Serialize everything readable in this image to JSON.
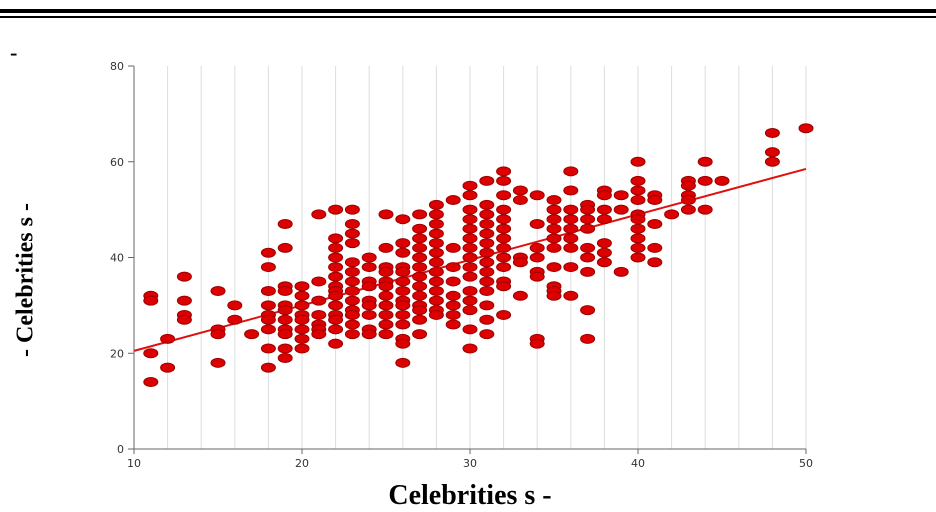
{
  "header": {
    "corner_mark": "-"
  },
  "chart_data": {
    "type": "scatter",
    "title": "",
    "xlabel": "Celebrities s -",
    "ylabel": "- Celebrities s -",
    "xlim": [
      10,
      50
    ],
    "ylim": [
      0,
      80
    ],
    "x_ticks": [
      10,
      20,
      30,
      40,
      50
    ],
    "y_ticks": [
      0,
      20,
      40,
      60,
      80
    ],
    "grid": "vertical",
    "trendline": {
      "x": [
        10,
        50
      ],
      "y": [
        20.5,
        58.5
      ]
    },
    "colors": {
      "points": "#dd0000",
      "point_stroke": "#990000",
      "trendline": "#e01010",
      "grid": "#dddddd",
      "axis": "#666666"
    },
    "points": [
      [
        11,
        32
      ],
      [
        11,
        31
      ],
      [
        11,
        20
      ],
      [
        11,
        14
      ],
      [
        12,
        23
      ],
      [
        12,
        17
      ],
      [
        13,
        36
      ],
      [
        13,
        31
      ],
      [
        13,
        28
      ],
      [
        13,
        27
      ],
      [
        15,
        33
      ],
      [
        15,
        25
      ],
      [
        15,
        24
      ],
      [
        15,
        18
      ],
      [
        16,
        30
      ],
      [
        16,
        27
      ],
      [
        17,
        24
      ],
      [
        18,
        41
      ],
      [
        18,
        38
      ],
      [
        18,
        33
      ],
      [
        18,
        30
      ],
      [
        18,
        28
      ],
      [
        18,
        27
      ],
      [
        18,
        25
      ],
      [
        18,
        21
      ],
      [
        18,
        17
      ],
      [
        19,
        47
      ],
      [
        19,
        42
      ],
      [
        19,
        34
      ],
      [
        19,
        33
      ],
      [
        19,
        30
      ],
      [
        19,
        29
      ],
      [
        19,
        27
      ],
      [
        19,
        25
      ],
      [
        19,
        24
      ],
      [
        19,
        21
      ],
      [
        19,
        19
      ],
      [
        20,
        34
      ],
      [
        20,
        32
      ],
      [
        20,
        30
      ],
      [
        20,
        28
      ],
      [
        20,
        27
      ],
      [
        20,
        25
      ],
      [
        20,
        23
      ],
      [
        20,
        21
      ],
      [
        21,
        49
      ],
      [
        21,
        35
      ],
      [
        21,
        31
      ],
      [
        21,
        28
      ],
      [
        21,
        26
      ],
      [
        21,
        25
      ],
      [
        21,
        24
      ],
      [
        22,
        50
      ],
      [
        22,
        44
      ],
      [
        22,
        42
      ],
      [
        22,
        40
      ],
      [
        22,
        38
      ],
      [
        22,
        36
      ],
      [
        22,
        34
      ],
      [
        22,
        33
      ],
      [
        22,
        32
      ],
      [
        22,
        30
      ],
      [
        22,
        28
      ],
      [
        22,
        27
      ],
      [
        22,
        25
      ],
      [
        22,
        22
      ],
      [
        23,
        50
      ],
      [
        23,
        47
      ],
      [
        23,
        45
      ],
      [
        23,
        43
      ],
      [
        23,
        39
      ],
      [
        23,
        37
      ],
      [
        23,
        35
      ],
      [
        23,
        33
      ],
      [
        23,
        31
      ],
      [
        23,
        29
      ],
      [
        23,
        28
      ],
      [
        23,
        26
      ],
      [
        23,
        24
      ],
      [
        24,
        40
      ],
      [
        24,
        38
      ],
      [
        24,
        35
      ],
      [
        24,
        34
      ],
      [
        24,
        31
      ],
      [
        24,
        30
      ],
      [
        24,
        28
      ],
      [
        24,
        25
      ],
      [
        24,
        24
      ],
      [
        25,
        49
      ],
      [
        25,
        42
      ],
      [
        25,
        38
      ],
      [
        25,
        37
      ],
      [
        25,
        35
      ],
      [
        25,
        34
      ],
      [
        25,
        32
      ],
      [
        25,
        30
      ],
      [
        25,
        28
      ],
      [
        25,
        26
      ],
      [
        25,
        24
      ],
      [
        26,
        48
      ],
      [
        26,
        43
      ],
      [
        26,
        41
      ],
      [
        26,
        38
      ],
      [
        26,
        37
      ],
      [
        26,
        35
      ],
      [
        26,
        33
      ],
      [
        26,
        31
      ],
      [
        26,
        30
      ],
      [
        26,
        28
      ],
      [
        26,
        26
      ],
      [
        26,
        23
      ],
      [
        26,
        22
      ],
      [
        26,
        18
      ],
      [
        27,
        49
      ],
      [
        27,
        46
      ],
      [
        27,
        44
      ],
      [
        27,
        42
      ],
      [
        27,
        40
      ],
      [
        27,
        38
      ],
      [
        27,
        36
      ],
      [
        27,
        34
      ],
      [
        27,
        32
      ],
      [
        27,
        30
      ],
      [
        27,
        29
      ],
      [
        27,
        27
      ],
      [
        27,
        24
      ],
      [
        28,
        51
      ],
      [
        28,
        49
      ],
      [
        28,
        47
      ],
      [
        28,
        45
      ],
      [
        28,
        43
      ],
      [
        28,
        41
      ],
      [
        28,
        39
      ],
      [
        28,
        37
      ],
      [
        28,
        35
      ],
      [
        28,
        33
      ],
      [
        28,
        31
      ],
      [
        28,
        29
      ],
      [
        28,
        28
      ],
      [
        29,
        52
      ],
      [
        29,
        42
      ],
      [
        29,
        38
      ],
      [
        29,
        35
      ],
      [
        29,
        32
      ],
      [
        29,
        30
      ],
      [
        29,
        28
      ],
      [
        29,
        26
      ],
      [
        30,
        55
      ],
      [
        30,
        53
      ],
      [
        30,
        50
      ],
      [
        30,
        48
      ],
      [
        30,
        46
      ],
      [
        30,
        44
      ],
      [
        30,
        42
      ],
      [
        30,
        40
      ],
      [
        30,
        38
      ],
      [
        30,
        36
      ],
      [
        30,
        33
      ],
      [
        30,
        31
      ],
      [
        30,
        29
      ],
      [
        30,
        25
      ],
      [
        30,
        21
      ],
      [
        31,
        56
      ],
      [
        31,
        51
      ],
      [
        31,
        49
      ],
      [
        31,
        47
      ],
      [
        31,
        45
      ],
      [
        31,
        43
      ],
      [
        31,
        41
      ],
      [
        31,
        39
      ],
      [
        31,
        37
      ],
      [
        31,
        35
      ],
      [
        31,
        33
      ],
      [
        31,
        30
      ],
      [
        31,
        27
      ],
      [
        31,
        24
      ],
      [
        32,
        58
      ],
      [
        32,
        56
      ],
      [
        32,
        53
      ],
      [
        32,
        50
      ],
      [
        32,
        48
      ],
      [
        32,
        46
      ],
      [
        32,
        44
      ],
      [
        32,
        42
      ],
      [
        32,
        40
      ],
      [
        32,
        38
      ],
      [
        32,
        35
      ],
      [
        32,
        34
      ],
      [
        32,
        28
      ],
      [
        33,
        54
      ],
      [
        33,
        52
      ],
      [
        33,
        40
      ],
      [
        33,
        39
      ],
      [
        33,
        32
      ],
      [
        34,
        53
      ],
      [
        34,
        47
      ],
      [
        34,
        42
      ],
      [
        34,
        40
      ],
      [
        34,
        37
      ],
      [
        34,
        36
      ],
      [
        34,
        23
      ],
      [
        34,
        22
      ],
      [
        35,
        52
      ],
      [
        35,
        50
      ],
      [
        35,
        48
      ],
      [
        35,
        46
      ],
      [
        35,
        44
      ],
      [
        35,
        42
      ],
      [
        35,
        38
      ],
      [
        35,
        34
      ],
      [
        35,
        33
      ],
      [
        35,
        32
      ],
      [
        36,
        58
      ],
      [
        36,
        54
      ],
      [
        36,
        50
      ],
      [
        36,
        48
      ],
      [
        36,
        46
      ],
      [
        36,
        44
      ],
      [
        36,
        42
      ],
      [
        36,
        38
      ],
      [
        36,
        32
      ],
      [
        37,
        51
      ],
      [
        37,
        50
      ],
      [
        37,
        48
      ],
      [
        37,
        46
      ],
      [
        37,
        42
      ],
      [
        37,
        40
      ],
      [
        37,
        37
      ],
      [
        37,
        29
      ],
      [
        37,
        23
      ],
      [
        38,
        54
      ],
      [
        38,
        53
      ],
      [
        38,
        50
      ],
      [
        38,
        48
      ],
      [
        38,
        43
      ],
      [
        38,
        41
      ],
      [
        38,
        39
      ],
      [
        39,
        53
      ],
      [
        39,
        50
      ],
      [
        39,
        37
      ],
      [
        40,
        60
      ],
      [
        40,
        56
      ],
      [
        40,
        54
      ],
      [
        40,
        52
      ],
      [
        40,
        49
      ],
      [
        40,
        48
      ],
      [
        40,
        46
      ],
      [
        40,
        44
      ],
      [
        40,
        42
      ],
      [
        40,
        40
      ],
      [
        41,
        53
      ],
      [
        41,
        52
      ],
      [
        41,
        47
      ],
      [
        41,
        42
      ],
      [
        41,
        39
      ],
      [
        42,
        49
      ],
      [
        43,
        56
      ],
      [
        43,
        55
      ],
      [
        43,
        53
      ],
      [
        43,
        52
      ],
      [
        43,
        50
      ],
      [
        44,
        60
      ],
      [
        44,
        56
      ],
      [
        44,
        50
      ],
      [
        45,
        56
      ],
      [
        48,
        66
      ],
      [
        48,
        62
      ],
      [
        48,
        60
      ],
      [
        50,
        67
      ]
    ]
  }
}
